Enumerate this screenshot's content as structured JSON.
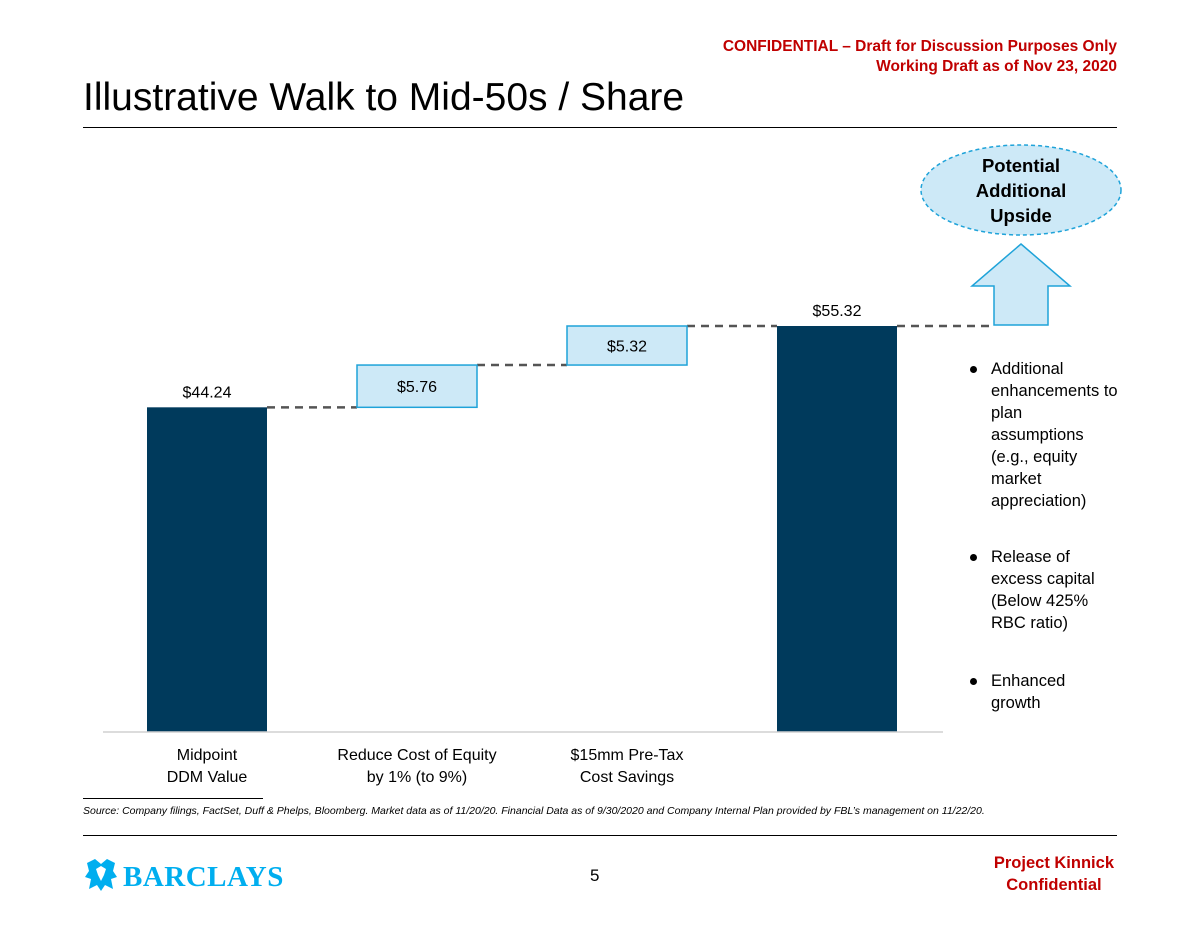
{
  "header": {
    "confidential_line1": "CONFIDENTIAL – Draft for Discussion Purposes Only",
    "confidential_line2": "Working Draft as of Nov 23, 2020",
    "title": "Illustrative Walk to Mid-50s / Share"
  },
  "chart_data": {
    "type": "bar",
    "subtype": "waterfall",
    "title": "Illustrative Walk to Mid-50s / Share",
    "categories": [
      [
        "Midpoint",
        "DDM Value"
      ],
      [
        "Reduce Cost of Equity",
        "by 1% (to 9%)"
      ],
      [
        "$15mm Pre-Tax",
        "Cost Savings"
      ],
      [
        "",
        ""
      ]
    ],
    "steps": [
      {
        "kind": "total",
        "base": 0,
        "value": 44.24,
        "label": "$44.24"
      },
      {
        "kind": "increment",
        "base": 44.24,
        "value": 5.76,
        "label": "$5.76"
      },
      {
        "kind": "increment",
        "base": 50.0,
        "value": 5.32,
        "label": "$5.32"
      },
      {
        "kind": "total",
        "base": 0,
        "value": 55.32,
        "label": "$55.32"
      }
    ],
    "ylim": [
      0,
      55.32
    ],
    "xlabel": "",
    "ylabel": "",
    "grid": false
  },
  "upside": {
    "lines": [
      "Potential",
      "Additional",
      "Upside"
    ]
  },
  "bullets": [
    "Additional enhancements to plan assumptions (e.g., equity market appreciation)",
    "Release of excess capital (Below 425% RBC ratio)",
    "Enhanced growth"
  ],
  "footer": {
    "source": "Source: Company filings, FactSet, Duff & Phelps, Bloomberg. Market data as of 11/20/20. Financial Data as of 9/30/2020 and Company Internal Plan provided by FBL’s management on 11/22/20.",
    "logo_text": "BARCLAYS",
    "page_number": "5",
    "project_line1": "Project Kinnick",
    "project_line2": "Confidential"
  },
  "colors": {
    "total_bar": "#003a5c",
    "increment_fill": "#cde9f7",
    "increment_stroke": "#1fa3d9",
    "connector": "#555555",
    "accent_red": "#c00000",
    "logo_blue": "#00aeef"
  }
}
